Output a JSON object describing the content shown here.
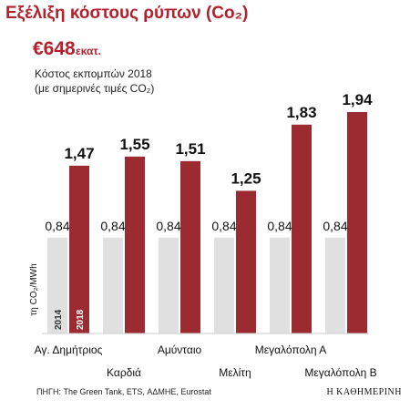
{
  "header": {
    "title": "Εξέλιξη κόστους ρύπων (Co₂)",
    "highlight_value": "€648",
    "highlight_unit": "εκατ.",
    "subtitle_line1": "Κόστος εκπομπών 2018",
    "subtitle_line2": "(με σημερινές τιμές CO₂)"
  },
  "footer": {
    "source": "ΠΗΓΗ: The Green Tank, ETS, ΑΔΜΗΕ, Eurostat",
    "brand": "Η ΚΑΘΗΜΕΡΙΝΗ"
  },
  "colors": {
    "bar_2014": "#e0e0e0",
    "bar_2018": "#9c2a31",
    "title": "#b3222c"
  },
  "chart_data": {
    "type": "bar",
    "title": "Εξέλιξη κόστους ρύπων (Co₂)",
    "ylabel": "τη CO₂/MWh",
    "categories": [
      "Αγ. Δημήτριος",
      "Καρδιά",
      "Αμύνταιο",
      "Μελίτη",
      "Μεγαλόπολη Α",
      "Μεγαλόπολη Β"
    ],
    "series": [
      {
        "name": "2014",
        "values": [
          0.84,
          0.84,
          0.84,
          0.84,
          0.84,
          0.84
        ],
        "labels": [
          "0,84",
          "0,84",
          "0,84",
          "0,84",
          "0,84",
          "0,84"
        ]
      },
      {
        "name": "2018",
        "values": [
          1.47,
          1.55,
          1.51,
          1.25,
          1.83,
          1.94
        ],
        "labels": [
          "1,47",
          "1,55",
          "1,51",
          "1,25",
          "1,83",
          "1,94"
        ]
      }
    ],
    "ylim": [
      0,
      2.0
    ],
    "grid": false,
    "legend": "inside first bars"
  }
}
